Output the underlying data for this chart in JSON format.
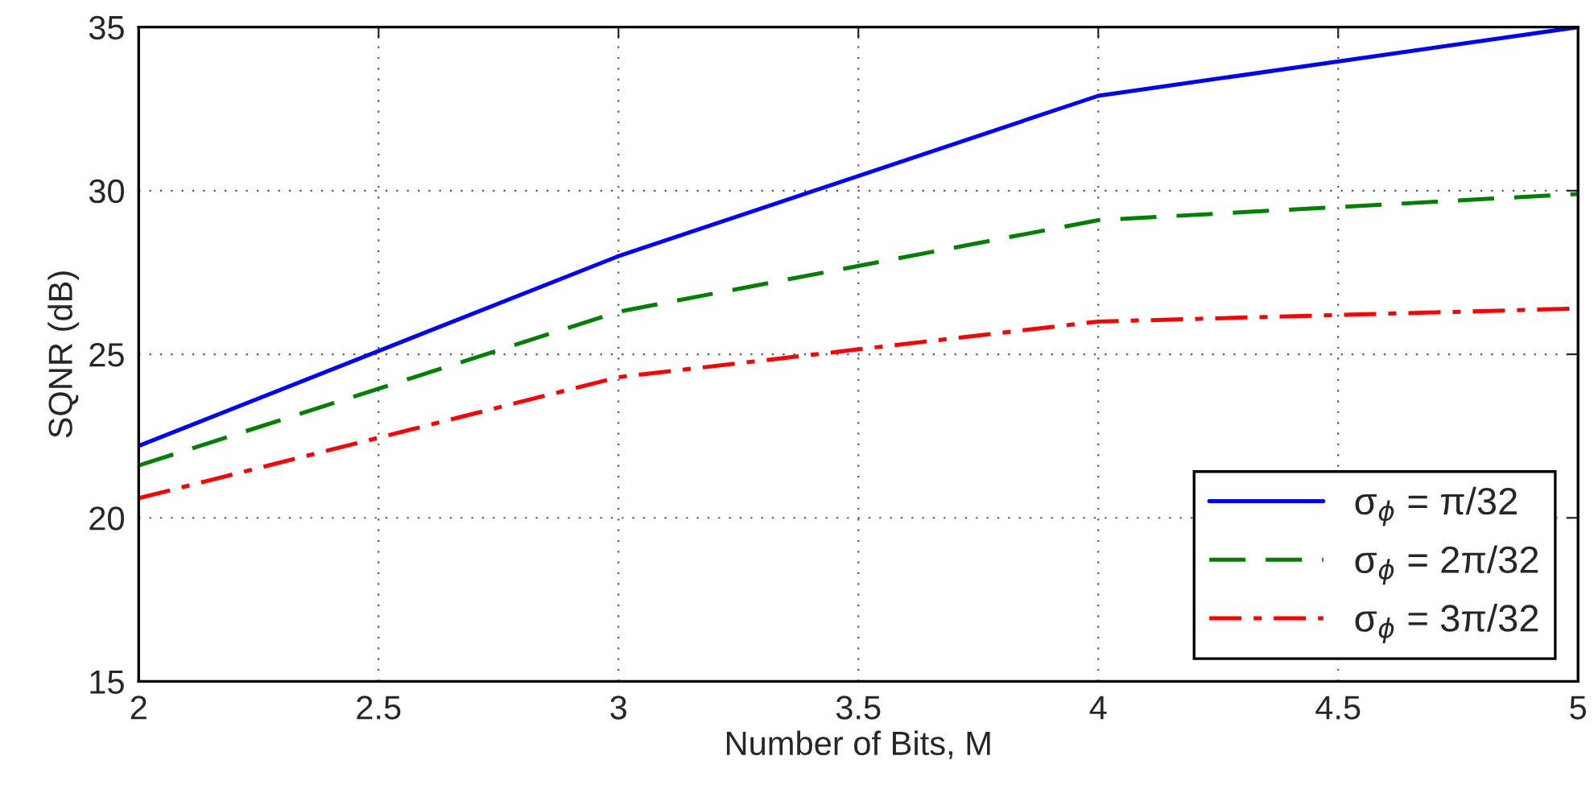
{
  "chart_data": {
    "type": "line",
    "xlabel": "Number of Bits, M",
    "ylabel": "SQNR (dB)",
    "x": [
      2,
      3,
      4,
      5
    ],
    "series": [
      {
        "name": "σ$_{ϕ}$ = π/32",
        "color": "#0000ff",
        "line_style": "solid",
        "values": [
          22.2,
          28.0,
          32.9,
          35.0
        ]
      },
      {
        "name": "σ$_{ϕ}$ = 2π/32",
        "color": "#008000",
        "line_style": "dashed",
        "values": [
          21.6,
          26.3,
          29.1,
          29.9
        ]
      },
      {
        "name": "σ$_{ϕ}$ = 3π/32",
        "color": "#ff0000",
        "line_style": "dashdot",
        "values": [
          20.6,
          24.3,
          26.0,
          26.4
        ]
      }
    ],
    "xlim": [
      2,
      5
    ],
    "xticks": [
      2,
      2.5,
      3,
      3.5,
      4,
      4.5,
      5
    ],
    "ylim": [
      15,
      35
    ],
    "yticks": [
      15,
      20,
      25,
      30,
      35
    ],
    "grid": true,
    "legend": "bottom right",
    "marker": "none"
  }
}
